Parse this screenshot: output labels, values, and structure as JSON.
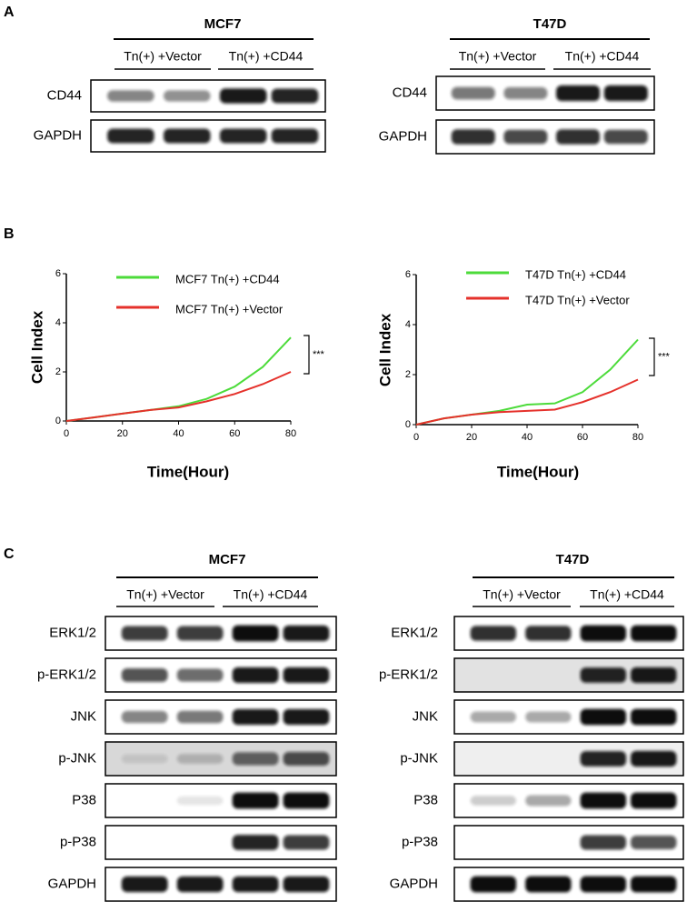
{
  "panel_labels": [
    "A",
    "B",
    "C"
  ],
  "blots_a": [
    {
      "title": "MCF7",
      "groups": [
        "Tn(+) +Vector",
        "Tn(+) +CD44"
      ],
      "rows": [
        "CD44",
        "GAPDH"
      ]
    },
    {
      "title": "T47D",
      "groups": [
        "Tn(+) +Vector",
        "Tn(+) +CD44"
      ],
      "rows": [
        "CD44",
        "GAPDH"
      ]
    }
  ],
  "chart_data": [
    {
      "type": "line",
      "y_label": "Cell Index",
      "x_label": "Time(Hour)",
      "annotation": "***",
      "x": [
        0,
        10,
        20,
        30,
        40,
        50,
        60,
        70,
        80
      ],
      "series": [
        {
          "name": "MCF7 Tn(+) +CD44",
          "color": "#4cdb3a",
          "values": [
            0,
            0.15,
            0.3,
            0.45,
            0.6,
            0.9,
            1.4,
            2.2,
            3.4
          ]
        },
        {
          "name": "MCF7 Tn(+) +Vector",
          "color": "#e5312b",
          "values": [
            0,
            0.15,
            0.3,
            0.45,
            0.55,
            0.8,
            1.1,
            1.5,
            2.0
          ]
        }
      ],
      "xlim": [
        0,
        80
      ],
      "ylim": [
        0,
        6
      ],
      "xticks": [
        0,
        20,
        40,
        60,
        80
      ],
      "yticks": [
        0,
        2,
        4,
        6
      ]
    },
    {
      "type": "line",
      "y_label": "Cell Index",
      "x_label": "Time(Hour)",
      "annotation": "***",
      "x": [
        0,
        10,
        20,
        30,
        40,
        50,
        60,
        70,
        80
      ],
      "series": [
        {
          "name": "T47D Tn(+) +CD44",
          "color": "#4cdb3a",
          "values": [
            0,
            0.25,
            0.4,
            0.55,
            0.8,
            0.85,
            1.3,
            2.2,
            3.4
          ]
        },
        {
          "name": "T47D Tn(+) +Vector",
          "color": "#e5312b",
          "values": [
            0,
            0.25,
            0.4,
            0.5,
            0.55,
            0.6,
            0.9,
            1.3,
            1.8
          ]
        }
      ],
      "xlim": [
        0,
        80
      ],
      "ylim": [
        0,
        6
      ],
      "xticks": [
        0,
        20,
        40,
        60,
        80
      ],
      "yticks": [
        0,
        2,
        4,
        6
      ]
    }
  ],
  "blots_c": [
    {
      "title": "MCF7",
      "groups": [
        "Tn(+) +Vector",
        "Tn(+) +CD44"
      ],
      "rows": [
        "ERK1/2",
        "p-ERK1/2",
        "JNK",
        "p-JNK",
        "P38",
        "p-P38",
        "GAPDH"
      ]
    },
    {
      "title": "T47D",
      "groups": [
        "Tn(+) +Vector",
        "Tn(+) +CD44"
      ],
      "rows": [
        "ERK1/2",
        "p-ERK1/2",
        "JNK",
        "p-JNK",
        "P38",
        "p-P38",
        "GAPDH"
      ]
    }
  ]
}
